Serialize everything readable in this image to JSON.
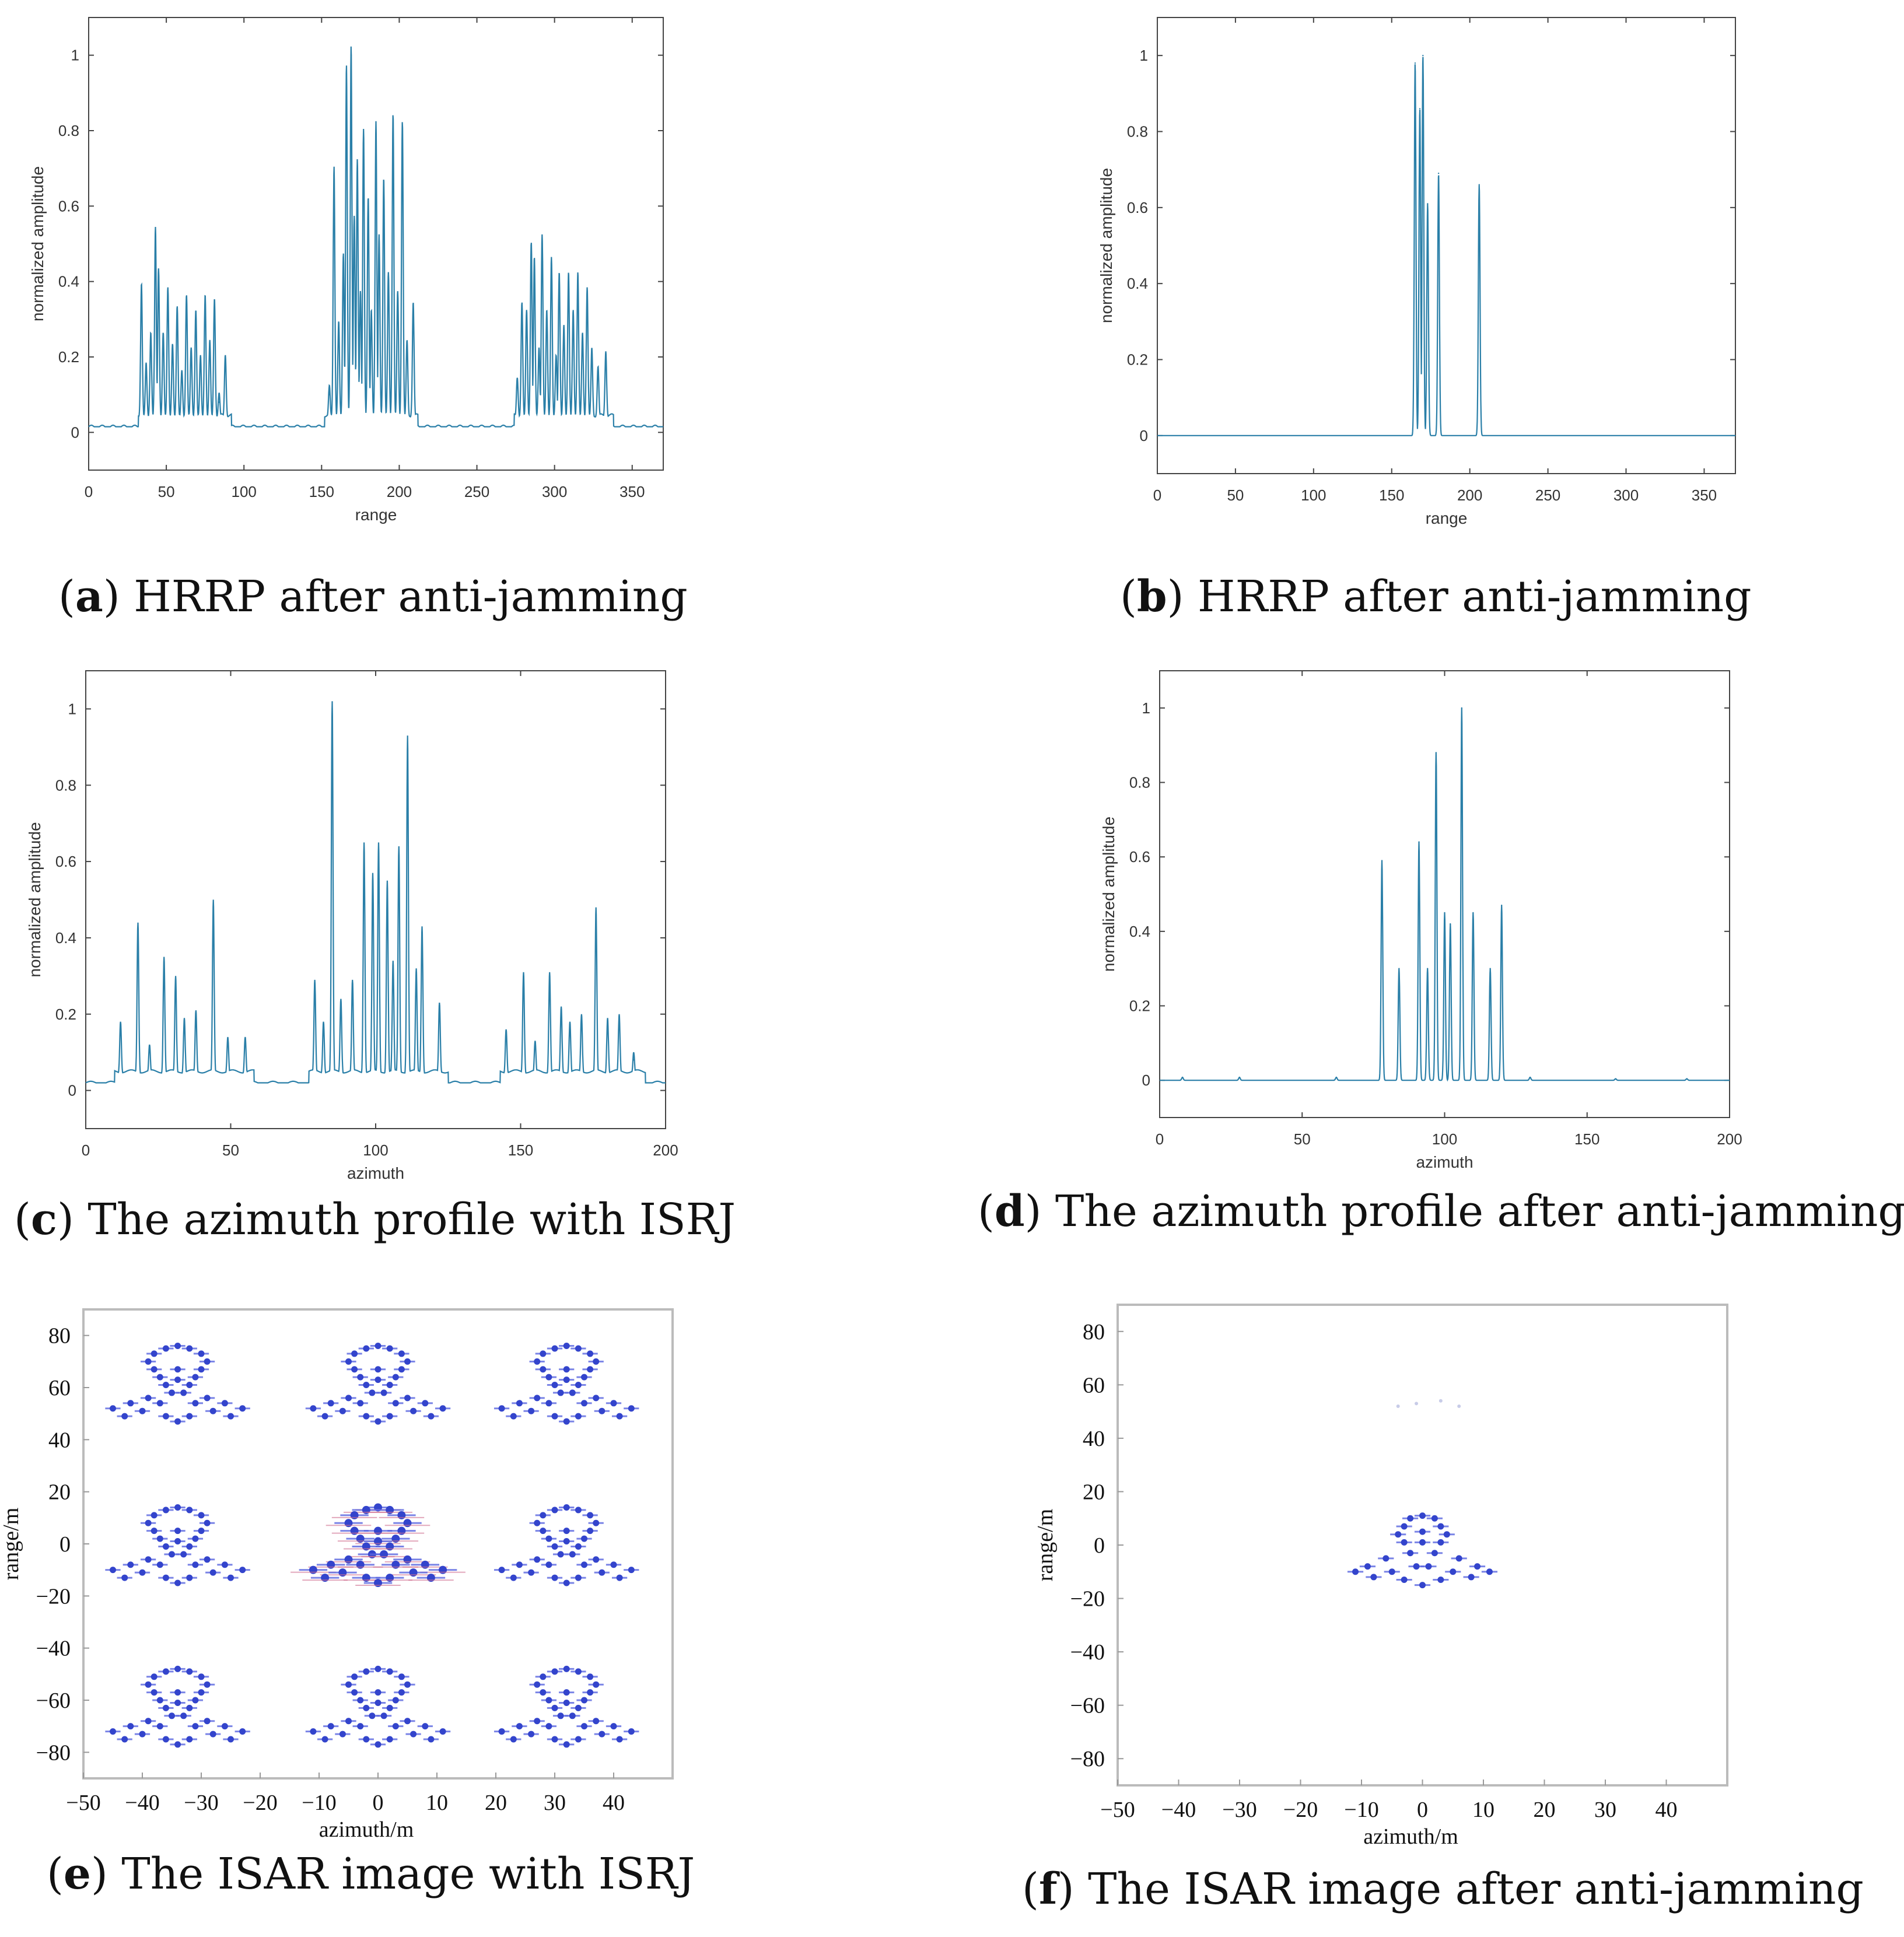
{
  "captions": [
    {
      "letter": "a",
      "text": "HRRP after anti-jamming"
    },
    {
      "letter": "b",
      "text": "HRRP after anti-jamming"
    },
    {
      "letter": "c",
      "text": "The azimuth profile with ISRJ"
    },
    {
      "letter": "d",
      "text": "The azimuth profile after anti-jamming"
    },
    {
      "letter": "e",
      "text": "The ISAR image with ISRJ"
    },
    {
      "letter": "f",
      "text": "The ISAR image after anti-jamming"
    }
  ],
  "chart_data": [
    {
      "id": "a",
      "type": "line",
      "xlabel": "range",
      "ylabel": "normalized amplitude",
      "xlim": [
        0,
        370
      ],
      "ylim": [
        -0.1,
        1.1
      ],
      "xticks": [
        0,
        50,
        100,
        150,
        200,
        250,
        300,
        350
      ],
      "yticks": [
        0,
        0.2,
        0.4,
        0.6,
        0.8,
        1
      ],
      "baseline": 0.015,
      "clusters": [
        [
          32,
          92
        ],
        [
          152,
          212
        ],
        [
          274,
          338
        ]
      ],
      "peaks": [
        [
          34,
          0.37
        ],
        [
          37,
          0.16
        ],
        [
          40,
          0.24
        ],
        [
          43,
          0.52
        ],
        [
          45,
          0.41
        ],
        [
          48,
          0.24
        ],
        [
          51,
          0.36
        ],
        [
          54,
          0.21
        ],
        [
          57,
          0.31
        ],
        [
          60,
          0.14
        ],
        [
          63,
          0.34
        ],
        [
          66,
          0.2
        ],
        [
          69,
          0.3
        ],
        [
          72,
          0.18
        ],
        [
          75,
          0.34
        ],
        [
          78,
          0.22
        ],
        [
          81,
          0.33
        ],
        [
          84,
          0.08
        ],
        [
          88,
          0.18
        ],
        [
          155,
          0.1
        ],
        [
          158,
          0.68
        ],
        [
          161,
          0.27
        ],
        [
          164,
          0.45
        ],
        [
          166,
          0.95
        ],
        [
          169,
          1.0
        ],
        [
          171,
          0.55
        ],
        [
          173,
          0.7
        ],
        [
          175,
          0.35
        ],
        [
          177,
          0.78
        ],
        [
          180,
          0.6
        ],
        [
          182,
          0.3
        ],
        [
          185,
          0.8
        ],
        [
          187,
          0.5
        ],
        [
          190,
          0.65
        ],
        [
          193,
          0.4
        ],
        [
          196,
          0.82
        ],
        [
          199,
          0.35
        ],
        [
          202,
          0.8
        ],
        [
          205,
          0.22
        ],
        [
          209,
          0.32
        ],
        [
          276,
          0.12
        ],
        [
          279,
          0.32
        ],
        [
          282,
          0.3
        ],
        [
          285,
          0.48
        ],
        [
          287,
          0.44
        ],
        [
          290,
          0.2
        ],
        [
          292,
          0.5
        ],
        [
          295,
          0.3
        ],
        [
          298,
          0.44
        ],
        [
          301,
          0.18
        ],
        [
          303,
          0.4
        ],
        [
          306,
          0.26
        ],
        [
          309,
          0.4
        ],
        [
          312,
          0.3
        ],
        [
          315,
          0.4
        ],
        [
          318,
          0.24
        ],
        [
          321,
          0.36
        ],
        [
          324,
          0.2
        ],
        [
          328,
          0.15
        ],
        [
          333,
          0.19
        ]
      ]
    },
    {
      "id": "b",
      "type": "line",
      "xlabel": "range",
      "ylabel": "normalized amplitude",
      "xlim": [
        0,
        370
      ],
      "ylim": [
        -0.1,
        1.1
      ],
      "xticks": [
        0,
        50,
        100,
        150,
        200,
        250,
        300,
        350
      ],
      "yticks": [
        0,
        0.2,
        0.4,
        0.6,
        0.8,
        1
      ],
      "baseline": 0.0,
      "clusters": [],
      "peaks": [
        [
          165,
          0.98
        ],
        [
          168,
          0.86
        ],
        [
          170,
          1.0
        ],
        [
          173,
          0.61
        ],
        [
          180,
          0.69
        ],
        [
          206,
          0.66
        ]
      ]
    },
    {
      "id": "c",
      "type": "line",
      "xlabel": "azimuth",
      "ylabel": "normalized amplitude",
      "xlim": [
        0,
        200
      ],
      "ylim": [
        -0.1,
        1.1
      ],
      "xticks": [
        0,
        50,
        100,
        150,
        200
      ],
      "yticks": [
        0,
        0.2,
        0.4,
        0.6,
        0.8,
        1
      ],
      "baseline": 0.02,
      "clusters": [
        [
          10,
          58
        ],
        [
          77,
          125
        ],
        [
          143,
          193
        ]
      ],
      "peaks": [
        [
          12,
          0.16
        ],
        [
          18,
          0.42
        ],
        [
          22,
          0.1
        ],
        [
          27,
          0.33
        ],
        [
          31,
          0.28
        ],
        [
          34,
          0.17
        ],
        [
          38,
          0.19
        ],
        [
          44,
          0.48
        ],
        [
          49,
          0.12
        ],
        [
          55,
          0.12
        ],
        [
          79,
          0.27
        ],
        [
          82,
          0.16
        ],
        [
          85,
          1.0
        ],
        [
          88,
          0.22
        ],
        [
          92,
          0.27
        ],
        [
          96,
          0.63
        ],
        [
          99,
          0.55
        ],
        [
          101,
          0.63
        ],
        [
          104,
          0.53
        ],
        [
          106,
          0.32
        ],
        [
          108,
          0.62
        ],
        [
          111,
          0.91
        ],
        [
          114,
          0.3
        ],
        [
          116,
          0.41
        ],
        [
          122,
          0.21
        ],
        [
          145,
          0.14
        ],
        [
          151,
          0.29
        ],
        [
          155,
          0.11
        ],
        [
          160,
          0.29
        ],
        [
          164,
          0.2
        ],
        [
          167,
          0.16
        ],
        [
          171,
          0.18
        ],
        [
          176,
          0.46
        ],
        [
          180,
          0.17
        ],
        [
          184,
          0.18
        ],
        [
          189,
          0.08
        ]
      ]
    },
    {
      "id": "d",
      "type": "line",
      "xlabel": "azimuth",
      "ylabel": "normalized amplitude",
      "xlim": [
        0,
        200
      ],
      "ylim": [
        -0.1,
        1.1
      ],
      "xticks": [
        0,
        50,
        100,
        150,
        200
      ],
      "yticks": [
        0,
        0.2,
        0.4,
        0.6,
        0.8,
        1
      ],
      "baseline": 0.0,
      "clusters": [],
      "peaks": [
        [
          8,
          0.008
        ],
        [
          28,
          0.008
        ],
        [
          62,
          0.008
        ],
        [
          78,
          0.59
        ],
        [
          84,
          0.3
        ],
        [
          91,
          0.64
        ],
        [
          94,
          0.3
        ],
        [
          97,
          0.88
        ],
        [
          100,
          0.45
        ],
        [
          102,
          0.42
        ],
        [
          106,
          1.0
        ],
        [
          110,
          0.45
        ],
        [
          116,
          0.3
        ],
        [
          120,
          0.47
        ],
        [
          130,
          0.008
        ],
        [
          160,
          0.004
        ],
        [
          185,
          0.004
        ]
      ]
    },
    {
      "id": "e",
      "type": "scatter",
      "xlabel": "azimuth/m",
      "ylabel": "range/m",
      "xlim": [
        -50,
        50
      ],
      "ylim": [
        -90,
        90
      ],
      "xticks": [
        -50,
        -40,
        -30,
        -20,
        -10,
        0,
        10,
        20,
        30,
        40
      ],
      "yticks": [
        80,
        60,
        40,
        20,
        0,
        -20,
        -40,
        -60,
        -80
      ],
      "target_offsets_x": [
        -34,
        0,
        32
      ],
      "target_offsets_y": [
        62,
        0,
        -62
      ],
      "target_points": [
        [
          0,
          14
        ],
        [
          -2,
          13
        ],
        [
          2,
          13
        ],
        [
          -4,
          11
        ],
        [
          4,
          11
        ],
        [
          -5,
          8
        ],
        [
          5,
          8
        ],
        [
          -4,
          5
        ],
        [
          4,
          5
        ],
        [
          -3,
          2
        ],
        [
          3,
          2
        ],
        [
          0,
          5
        ],
        [
          0,
          1
        ],
        [
          -2,
          -1
        ],
        [
          2,
          -1
        ],
        [
          -1,
          -4
        ],
        [
          1,
          -4
        ],
        [
          -5,
          -6
        ],
        [
          5,
          -6
        ],
        [
          -8,
          -8
        ],
        [
          8,
          -8
        ],
        [
          -11,
          -10
        ],
        [
          11,
          -10
        ],
        [
          -3,
          -8
        ],
        [
          3,
          -8
        ],
        [
          -6,
          -11
        ],
        [
          6,
          -11
        ],
        [
          -2,
          -13
        ],
        [
          2,
          -13
        ],
        [
          0,
          -15
        ],
        [
          -9,
          -13
        ],
        [
          9,
          -13
        ]
      ]
    },
    {
      "id": "f",
      "type": "scatter",
      "xlabel": "azimuth/m",
      "ylabel": "range/m",
      "xlim": [
        -50,
        50
      ],
      "ylim": [
        -90,
        90
      ],
      "xticks": [
        -50,
        -40,
        -30,
        -20,
        -10,
        0,
        10,
        20,
        30,
        40
      ],
      "yticks": [
        80,
        60,
        40,
        20,
        0,
        -20,
        -40,
        -60,
        -80
      ],
      "target_offsets_x": [
        0
      ],
      "target_offsets_y": [
        0
      ],
      "target_points": [
        [
          0,
          11
        ],
        [
          -2,
          10
        ],
        [
          2,
          10
        ],
        [
          -3,
          7
        ],
        [
          3,
          7
        ],
        [
          -4,
          4
        ],
        [
          4,
          4
        ],
        [
          0,
          5
        ],
        [
          0,
          1
        ],
        [
          -3,
          1
        ],
        [
          3,
          1
        ],
        [
          -2,
          -3
        ],
        [
          2,
          -3
        ],
        [
          -6,
          -5
        ],
        [
          6,
          -5
        ],
        [
          -9,
          -8
        ],
        [
          9,
          -8
        ],
        [
          -11,
          -10
        ],
        [
          11,
          -10
        ],
        [
          -5,
          -10
        ],
        [
          5,
          -10
        ],
        [
          -1,
          -8
        ],
        [
          1,
          -8
        ],
        [
          -3,
          -13
        ],
        [
          3,
          -13
        ],
        [
          0,
          -15
        ],
        [
          -8,
          -12
        ],
        [
          8,
          -12
        ]
      ],
      "faint_points": [
        [
          -4,
          52
        ],
        [
          -1,
          53
        ],
        [
          3,
          54
        ],
        [
          6,
          52
        ]
      ]
    }
  ]
}
